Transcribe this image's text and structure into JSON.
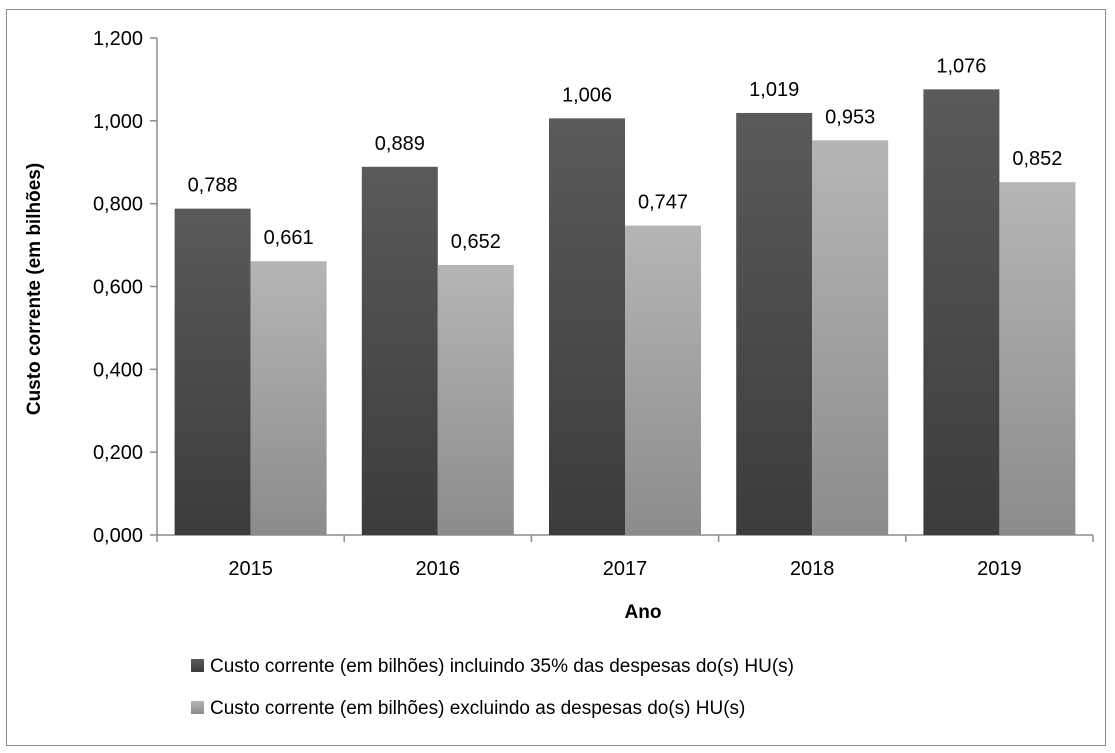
{
  "chart_data": {
    "type": "bar",
    "categories": [
      "2015",
      "2016",
      "2017",
      "2018",
      "2019"
    ],
    "series": [
      {
        "name": "Custo corrente (em bilhões) incluindo 35% das despesas do(s)  HU(s)",
        "values": [
          0.788,
          0.889,
          1.006,
          1.019,
          1.076
        ],
        "labels": [
          "0,788",
          "0,889",
          "1,006",
          "1,019",
          "1,076"
        ],
        "color": "#4d4d4d"
      },
      {
        "name": "Custo corrente (em bilhões) excluindo as despesas do(s) HU(s)",
        "values": [
          0.661,
          0.652,
          0.747,
          0.953,
          0.852
        ],
        "labels": [
          "0,661",
          "0,652",
          "0,747",
          "0,953",
          "0,852"
        ],
        "color": "#a6a6a6"
      }
    ],
    "xlabel": "Ano",
    "ylabel": "Custo corrente (em bilhões)",
    "ylim": [
      0,
      1.2
    ],
    "yticks": [
      0,
      0.2,
      0.4,
      0.6,
      0.8,
      1.0,
      1.2
    ],
    "ytick_labels": [
      "0,000",
      "0,200",
      "0,400",
      "0,600",
      "0,800",
      "1,000",
      "1,200"
    ],
    "grid": false,
    "legend_position": "bottom"
  }
}
